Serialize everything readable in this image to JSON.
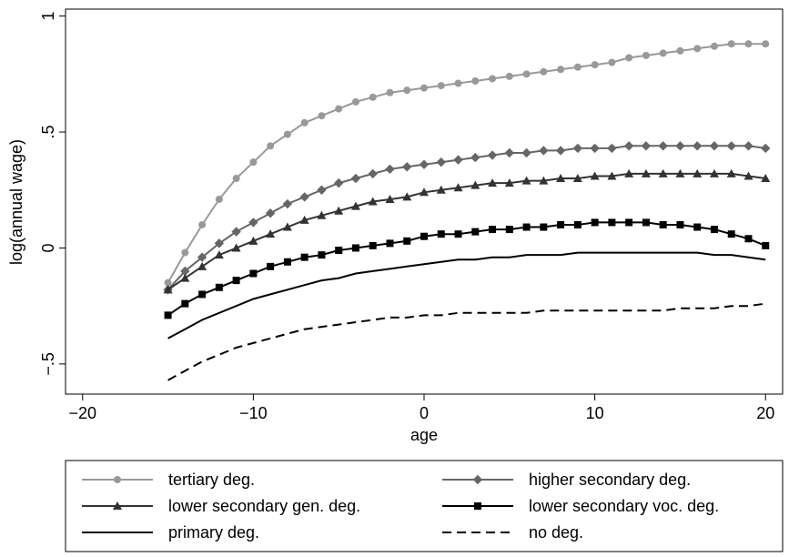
{
  "chart_data": {
    "type": "line",
    "xlabel": "age",
    "ylabel": "log(annual wage)",
    "xlim": [
      -21,
      21
    ],
    "ylim": [
      -0.63,
      1.03
    ],
    "xticks": [
      -20,
      -10,
      0,
      10,
      20
    ],
    "xtick_labels": [
      "−20",
      "−10",
      "0",
      "10",
      "20"
    ],
    "yticks": [
      -0.5,
      0,
      0.5,
      1
    ],
    "ytick_labels": [
      "−.5",
      "0",
      ".5",
      "1"
    ],
    "grid": false,
    "legend_position": "bottom",
    "x": [
      -15,
      -14,
      -13,
      -12,
      -11,
      -10,
      -9,
      -8,
      -7,
      -6,
      -5,
      -4,
      -3,
      -2,
      -1,
      0,
      1,
      2,
      3,
      4,
      5,
      6,
      7,
      8,
      9,
      10,
      11,
      12,
      13,
      14,
      15,
      16,
      17,
      18,
      19,
      20
    ],
    "series": [
      {
        "name": "tertiary deg.",
        "color": "#999999",
        "marker": "circle",
        "dash": "solid",
        "values": [
          -0.15,
          -0.02,
          0.1,
          0.21,
          0.3,
          0.37,
          0.44,
          0.49,
          0.54,
          0.57,
          0.6,
          0.63,
          0.65,
          0.67,
          0.68,
          0.69,
          0.7,
          0.71,
          0.72,
          0.73,
          0.74,
          0.75,
          0.76,
          0.77,
          0.78,
          0.79,
          0.8,
          0.82,
          0.83,
          0.84,
          0.85,
          0.86,
          0.87,
          0.88,
          0.88,
          0.88
        ]
      },
      {
        "name": "higher secondary deg.",
        "color": "#666666",
        "marker": "diamond",
        "dash": "solid",
        "values": [
          -0.18,
          -0.1,
          -0.04,
          0.02,
          0.07,
          0.11,
          0.15,
          0.19,
          0.22,
          0.25,
          0.28,
          0.3,
          0.32,
          0.34,
          0.35,
          0.36,
          0.37,
          0.38,
          0.39,
          0.4,
          0.41,
          0.41,
          0.42,
          0.42,
          0.43,
          0.43,
          0.43,
          0.44,
          0.44,
          0.44,
          0.44,
          0.44,
          0.44,
          0.44,
          0.44,
          0.43
        ]
      },
      {
        "name": "lower secondary gen. deg.",
        "color": "#333333",
        "marker": "triangle",
        "dash": "solid",
        "values": [
          -0.18,
          -0.13,
          -0.08,
          -0.03,
          0.0,
          0.03,
          0.06,
          0.09,
          0.12,
          0.14,
          0.16,
          0.18,
          0.2,
          0.21,
          0.22,
          0.24,
          0.25,
          0.26,
          0.27,
          0.28,
          0.28,
          0.29,
          0.29,
          0.3,
          0.3,
          0.31,
          0.31,
          0.32,
          0.32,
          0.32,
          0.32,
          0.32,
          0.32,
          0.32,
          0.31,
          0.3
        ]
      },
      {
        "name": "lower secondary voc. deg.",
        "color": "#000000",
        "marker": "square",
        "dash": "solid",
        "values": [
          -0.29,
          -0.24,
          -0.2,
          -0.17,
          -0.14,
          -0.11,
          -0.08,
          -0.06,
          -0.04,
          -0.03,
          -0.01,
          0.0,
          0.01,
          0.02,
          0.03,
          0.05,
          0.06,
          0.06,
          0.07,
          0.08,
          0.08,
          0.09,
          0.09,
          0.1,
          0.1,
          0.11,
          0.11,
          0.11,
          0.11,
          0.1,
          0.1,
          0.09,
          0.08,
          0.06,
          0.04,
          0.01
        ]
      },
      {
        "name": "primary deg.",
        "color": "#000000",
        "marker": "none",
        "dash": "solid",
        "values": [
          -0.39,
          -0.35,
          -0.31,
          -0.28,
          -0.25,
          -0.22,
          -0.2,
          -0.18,
          -0.16,
          -0.14,
          -0.13,
          -0.11,
          -0.1,
          -0.09,
          -0.08,
          -0.07,
          -0.06,
          -0.05,
          -0.05,
          -0.04,
          -0.04,
          -0.03,
          -0.03,
          -0.03,
          -0.02,
          -0.02,
          -0.02,
          -0.02,
          -0.02,
          -0.02,
          -0.02,
          -0.02,
          -0.03,
          -0.03,
          -0.04,
          -0.05
        ]
      },
      {
        "name": "no deg.",
        "color": "#000000",
        "marker": "none",
        "dash": "dashed",
        "values": [
          -0.57,
          -0.53,
          -0.49,
          -0.46,
          -0.43,
          -0.41,
          -0.39,
          -0.37,
          -0.35,
          -0.34,
          -0.33,
          -0.32,
          -0.31,
          -0.3,
          -0.3,
          -0.29,
          -0.29,
          -0.28,
          -0.28,
          -0.28,
          -0.28,
          -0.28,
          -0.27,
          -0.27,
          -0.27,
          -0.27,
          -0.27,
          -0.27,
          -0.27,
          -0.27,
          -0.26,
          -0.26,
          -0.26,
          -0.25,
          -0.25,
          -0.24
        ]
      }
    ]
  }
}
